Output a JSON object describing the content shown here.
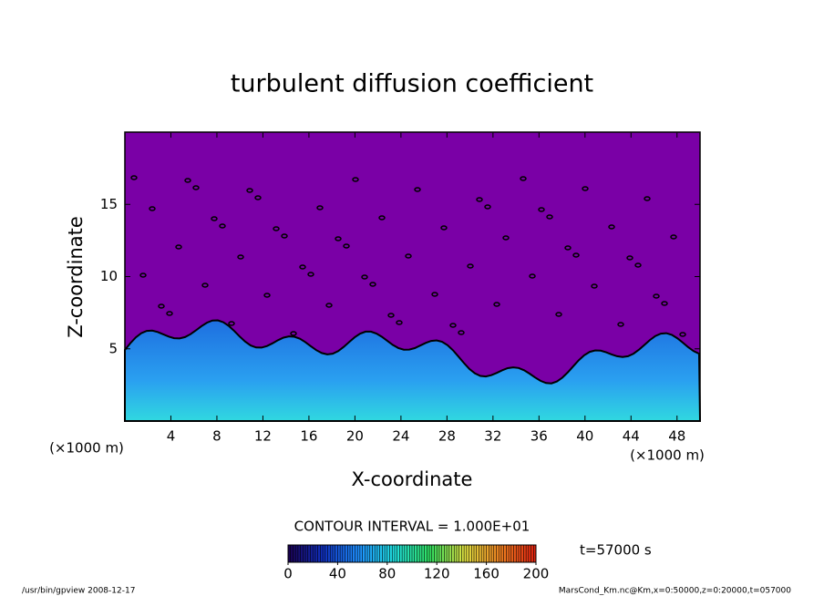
{
  "chart_data": {
    "type": "contour",
    "title": "turbulent diffusion coefficient",
    "xlabel": "X-coordinate",
    "ylabel": "Z-coordinate",
    "x_unit_labels": [
      "(×1000 m)",
      "(×1000 m)"
    ],
    "xlim": [
      0,
      50
    ],
    "xticks": [
      4,
      8,
      12,
      16,
      20,
      24,
      28,
      32,
      36,
      40,
      44,
      48
    ],
    "ylim": [
      0,
      20
    ],
    "yticks": [
      5,
      10,
      15
    ],
    "field_color": "#7a00a6",
    "contour_interval": "CONTOUR INTERVAL = 1.000E+01",
    "time_label": "t=57000 s",
    "colorbar": {
      "lim": [
        0,
        200
      ],
      "ticks": [
        0,
        40,
        80,
        120,
        160,
        200
      ],
      "colors": [
        "#1a0050",
        "#1030c0",
        "#1e90ff",
        "#20e0e0",
        "#30e060",
        "#e0e040",
        "#f08020",
        "#e02010"
      ]
    },
    "footer_left": "/usr/bin/gpview  2008-12-17",
    "footer_right": "MarsCond_Km.nc@Km,x=0:50000,z=0:20000,t=057000"
  }
}
